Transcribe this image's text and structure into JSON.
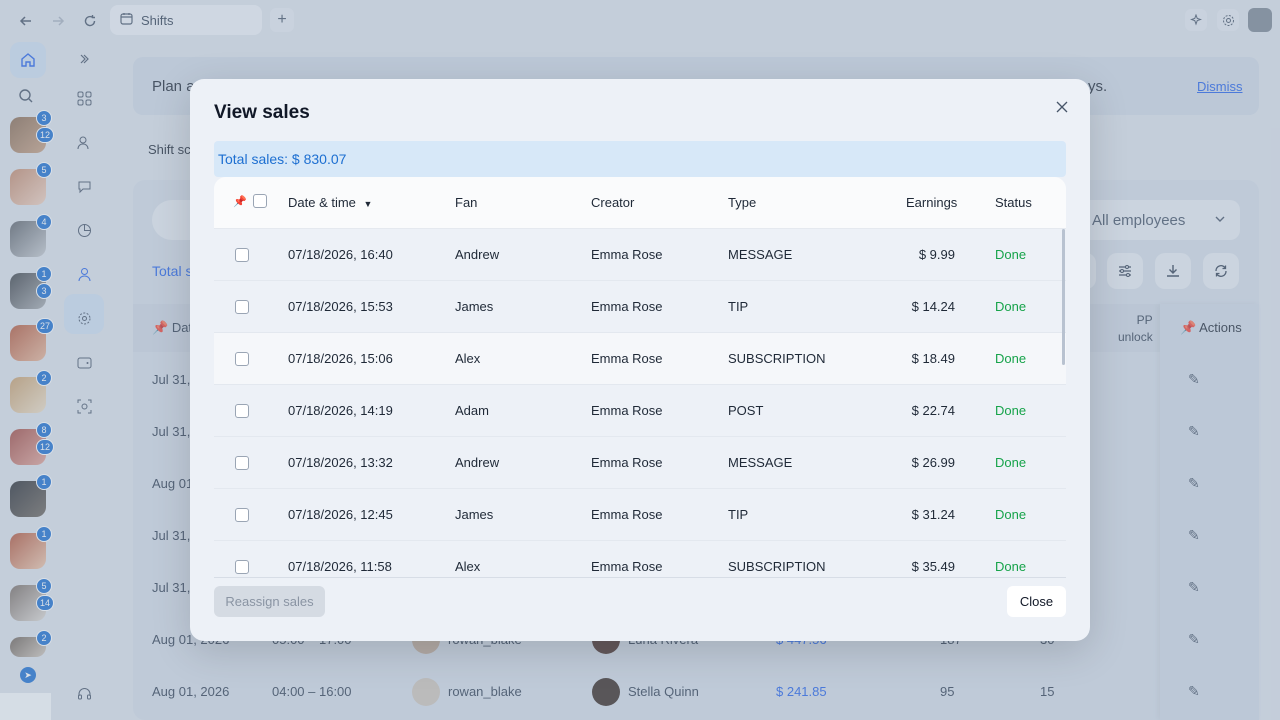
{
  "browser": {
    "tab_title": "Shifts",
    "icons": [
      "back-icon",
      "forward-icon",
      "reload-icon",
      "calendar-icon",
      "plus-icon",
      "sparkle-icon",
      "gear-icon"
    ]
  },
  "rail": {
    "badges": [
      {
        "top": "3",
        "bottom": "12"
      },
      {
        "top": "5",
        "bottom": ""
      },
      {
        "top": "4",
        "bottom": ""
      },
      {
        "top": "1",
        "bottom": "3"
      },
      {
        "top": "27",
        "bottom": ""
      },
      {
        "top": "2",
        "bottom": ""
      },
      {
        "top": "8",
        "bottom": "12"
      },
      {
        "top": "1",
        "bottom": ""
      },
      {
        "top": "1",
        "bottom": ""
      },
      {
        "top": "5",
        "bottom": "14"
      },
      {
        "top": "2",
        "bottom": ""
      }
    ]
  },
  "background": {
    "banner_text": "Plan a",
    "banner_tail": "ys.",
    "dismiss_label": "Dismiss",
    "shift_label": "Shift sc",
    "employees_select": "All employees",
    "total_label": "Total s",
    "header_date": "Dat",
    "header_pp": "PP",
    "header_unlock": "unlock",
    "header_actions": "Actions",
    "row_dates": [
      "Jul 31,",
      "Jul 31,",
      "Aug 01",
      "Jul 31,",
      "Jul 31,"
    ],
    "row6": {
      "date": "Aug 01, 2026",
      "time": "05:00 – 17:00",
      "employee": "rowan_blake",
      "creator": "Luna Rivera",
      "amount": "$ 447.56",
      "n1": "187",
      "n2": "30"
    },
    "row7": {
      "date": "Aug 01, 2026",
      "time": "04:00 – 16:00",
      "employee": "rowan_blake",
      "creator": "Stella Quinn",
      "amount": "$ 241.85",
      "n1": "95",
      "n2": "15"
    }
  },
  "modal": {
    "title": "View sales",
    "total_sales": "Total sales: $ 830.07",
    "columns": {
      "date": "Date & time",
      "fan": "Fan",
      "creator": "Creator",
      "type": "Type",
      "earnings": "Earnings",
      "status": "Status"
    },
    "rows": [
      {
        "date": "07/18/2026, 16:40",
        "fan": "Andrew",
        "creator": "Emma Rose",
        "type": "MESSAGE",
        "earnings": "$ 9.99",
        "status": "Done"
      },
      {
        "date": "07/18/2026, 15:53",
        "fan": "James",
        "creator": "Emma Rose",
        "type": "TIP",
        "earnings": "$ 14.24",
        "status": "Done"
      },
      {
        "date": "07/18/2026, 15:06",
        "fan": "Alex",
        "creator": "Emma Rose",
        "type": "SUBSCRIPTION",
        "earnings": "$ 18.49",
        "status": "Done"
      },
      {
        "date": "07/18/2026, 14:19",
        "fan": "Adam",
        "creator": "Emma Rose",
        "type": "POST",
        "earnings": "$ 22.74",
        "status": "Done"
      },
      {
        "date": "07/18/2026, 13:32",
        "fan": "Andrew",
        "creator": "Emma Rose",
        "type": "MESSAGE",
        "earnings": "$ 26.99",
        "status": "Done"
      },
      {
        "date": "07/18/2026, 12:45",
        "fan": "James",
        "creator": "Emma Rose",
        "type": "TIP",
        "earnings": "$ 31.24",
        "status": "Done"
      },
      {
        "date": "07/18/2026, 11:58",
        "fan": "Alex",
        "creator": "Emma Rose",
        "type": "SUBSCRIPTION",
        "earnings": "$ 35.49",
        "status": "Done"
      }
    ],
    "reassign_label": "Reassign sales",
    "close_label": "Close"
  }
}
